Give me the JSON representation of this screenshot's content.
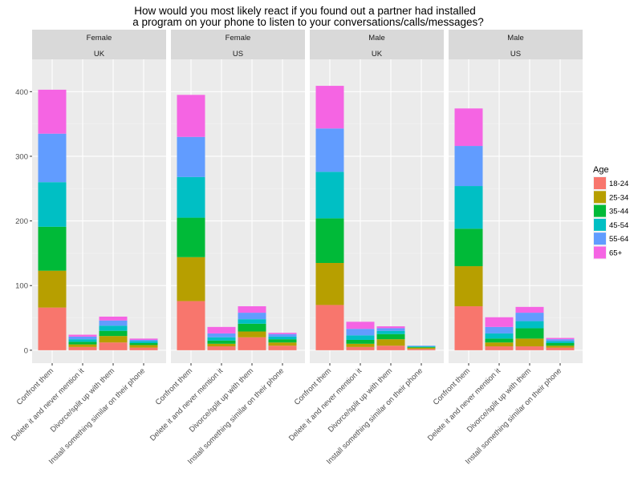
{
  "chart_data": {
    "type": "bar",
    "stacked": true,
    "title_lines": [
      "How would you most likely react if you found out a partner had installed",
      "a program on your phone to listen to your conversations/calls/messages?"
    ],
    "xlabel": "",
    "ylabel": "",
    "ylim": [
      -20,
      450
    ],
    "y_ticks": [
      0,
      100,
      200,
      300,
      400
    ],
    "categories": [
      "Confront them",
      "Delete it and never mention it",
      "Divorce/split up with them",
      "Install something similar on their phone"
    ],
    "legend": {
      "title": "Age",
      "position": "right",
      "entries": [
        {
          "label": "18-24",
          "color": "#F8766D"
        },
        {
          "label": "25-34",
          "color": "#B79F00"
        },
        {
          "label": "35-44",
          "color": "#00BA38"
        },
        {
          "label": "45-54",
          "color": "#00BFC4"
        },
        {
          "label": "55-64",
          "color": "#619CFF"
        },
        {
          "label": "65+",
          "color": "#F564E3"
        }
      ]
    },
    "background": "#EBEBEB",
    "strip_background": "#D9D9D9",
    "grid": true,
    "panels": [
      {
        "strip": [
          "Female",
          "UK"
        ],
        "stacks": [
          [
            66,
            57,
            68,
            69,
            75,
            68
          ],
          [
            5,
            4,
            4,
            4,
            4,
            3
          ],
          [
            12,
            10,
            8,
            8,
            8,
            6
          ],
          [
            4,
            4,
            3,
            3,
            2,
            2
          ]
        ]
      },
      {
        "strip": [
          "Female",
          "US"
        ],
        "stacks": [
          [
            76,
            68,
            61,
            63,
            62,
            65
          ],
          [
            6,
            4,
            5,
            5,
            6,
            10
          ],
          [
            20,
            9,
            12,
            7,
            10,
            10
          ],
          [
            7,
            5,
            5,
            4,
            4,
            2
          ]
        ]
      },
      {
        "strip": [
          "Male",
          "UK"
        ],
        "stacks": [
          [
            70,
            65,
            69,
            72,
            67,
            66
          ],
          [
            5,
            5,
            6,
            7,
            10,
            11
          ],
          [
            7,
            10,
            8,
            5,
            4,
            3
          ],
          [
            2,
            2,
            1,
            1,
            1,
            0
          ]
        ]
      },
      {
        "strip": [
          "Male",
          "US"
        ],
        "stacks": [
          [
            68,
            62,
            58,
            66,
            62,
            58
          ],
          [
            6,
            6,
            6,
            8,
            10,
            15
          ],
          [
            6,
            12,
            16,
            11,
            13,
            9
          ],
          [
            4,
            3,
            4,
            3,
            3,
            2
          ]
        ]
      }
    ]
  }
}
